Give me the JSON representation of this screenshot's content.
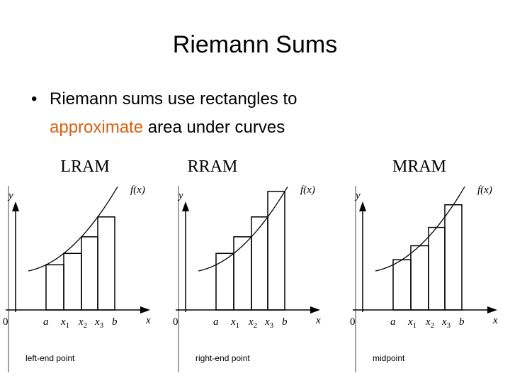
{
  "header": {
    "title": "Riemann Sums"
  },
  "bullet": {
    "before": "Riemann sums use rectangles to",
    "highlight": "approximate",
    "after": "area under curves"
  },
  "panels": [
    {
      "label": "LRAM",
      "y_axis": "y",
      "function": "f(x)",
      "origin": "0",
      "x_axis": "x",
      "ticks": [
        {
          "text": "a"
        },
        {
          "text": "x",
          "sub": "1"
        },
        {
          "text": "x",
          "sub": "2"
        },
        {
          "text": "x",
          "sub": "3"
        },
        {
          "text": "b"
        }
      ],
      "caption": "left-end point"
    },
    {
      "label": "RRAM",
      "y_axis": "y",
      "function": "f(x)",
      "origin": "0",
      "x_axis": "x",
      "ticks": [
        {
          "text": "a"
        },
        {
          "text": "x",
          "sub": "1"
        },
        {
          "text": "x",
          "sub": "2"
        },
        {
          "text": "x",
          "sub": "3"
        },
        {
          "text": "b"
        }
      ],
      "caption": "right-end point"
    },
    {
      "label": "MRAM",
      "y_axis": "y",
      "function": "f(x)",
      "origin": "0",
      "x_axis": "x",
      "ticks": [
        {
          "text": "a"
        },
        {
          "text": "x",
          "sub": "1"
        },
        {
          "text": "x",
          "sub": "2"
        },
        {
          "text": "x",
          "sub": "3"
        },
        {
          "text": "b"
        }
      ],
      "caption": "midpoint"
    }
  ]
}
